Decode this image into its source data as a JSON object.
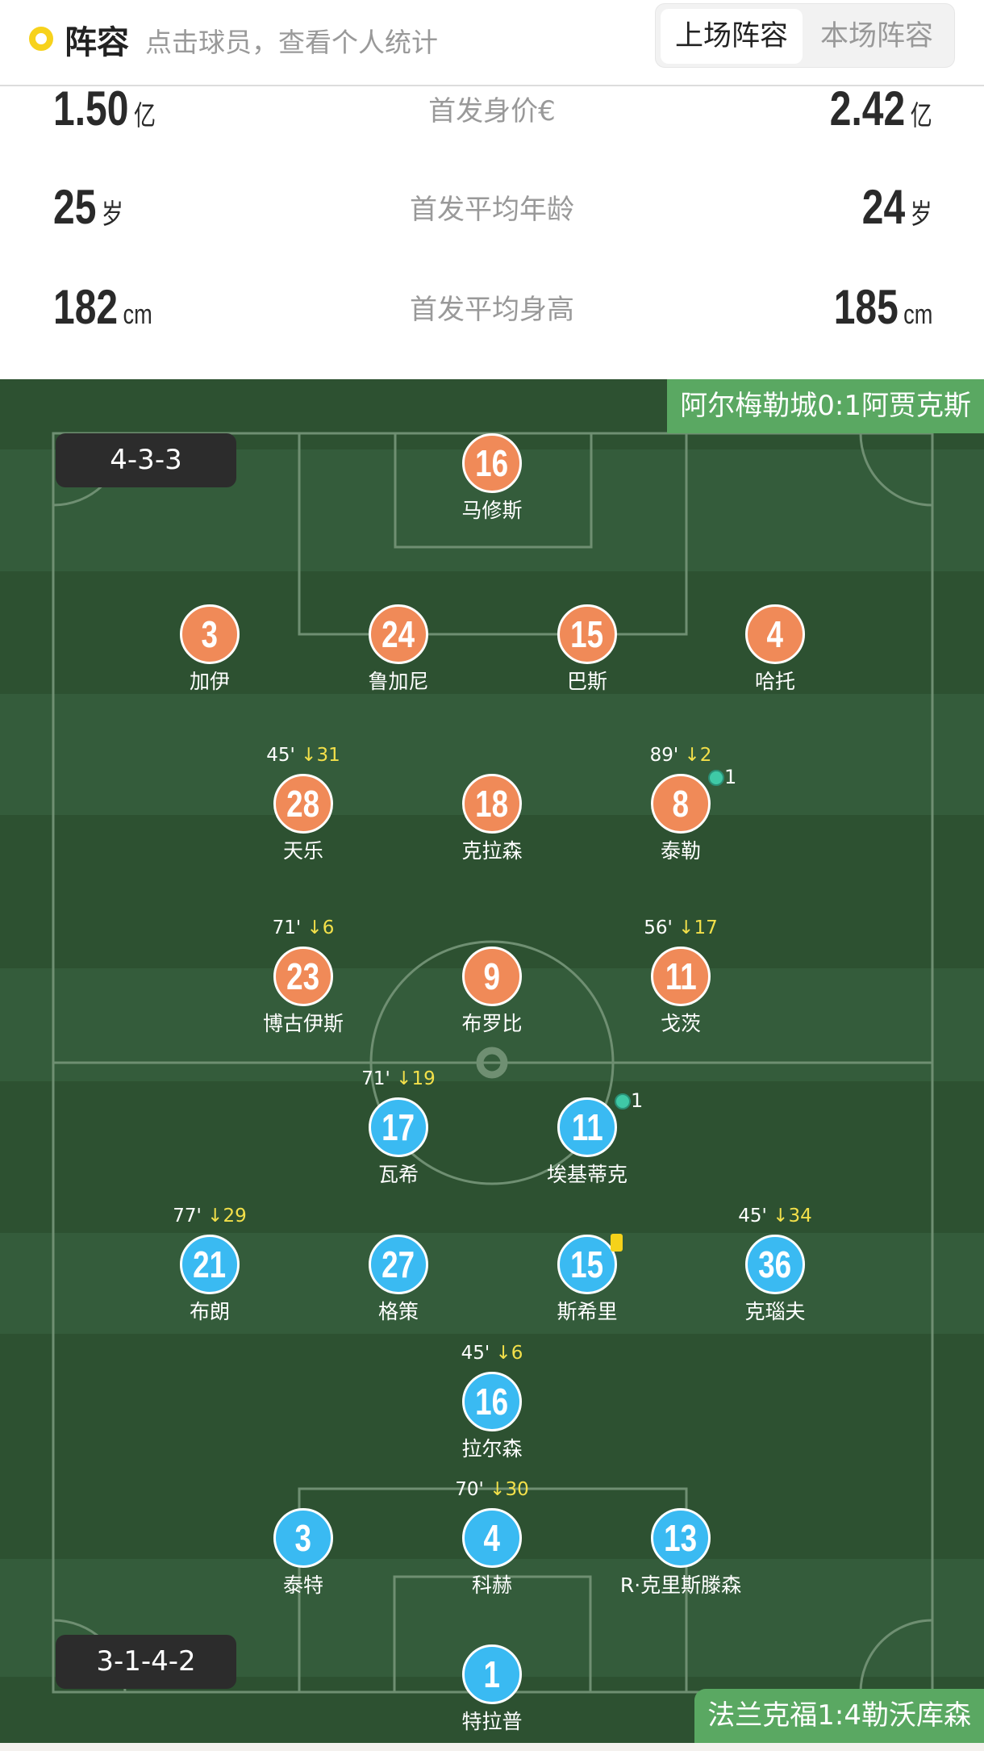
{
  "header": {
    "title": "阵容",
    "subtitle": "点击球员，查看个人统计",
    "tabs": [
      {
        "label": "上场阵容",
        "active": true
      },
      {
        "label": "本场阵容",
        "active": false
      }
    ],
    "accent": "#f7d21c"
  },
  "stats": [
    {
      "label": "首发身价€",
      "left": "1.50",
      "left_unit": "亿",
      "right": "2.42",
      "right_unit": "亿"
    },
    {
      "label": "首发平均年龄",
      "left": "25",
      "left_unit": "岁",
      "right": "24",
      "right_unit": "岁"
    },
    {
      "label": "首发平均身高",
      "left": "182",
      "left_unit": "cm",
      "right": "185",
      "right_unit": "cm"
    }
  ],
  "pitch": {
    "home": {
      "formation": "4-3-3",
      "last_match": "阿尔梅勒城0:1阿贾克斯",
      "color": "#f08a58"
    },
    "away": {
      "formation": "3-1-4-2",
      "last_match": "法兰克福1:4勒沃库森",
      "color": "#3abaf2"
    },
    "players": [
      {
        "team": "home",
        "number": "16",
        "name": "马修斯"
      },
      {
        "team": "home",
        "number": "3",
        "name": "加伊"
      },
      {
        "team": "home",
        "number": "24",
        "name": "鲁加尼"
      },
      {
        "team": "home",
        "number": "15",
        "name": "巴斯"
      },
      {
        "team": "home",
        "number": "4",
        "name": "哈托"
      },
      {
        "team": "home",
        "number": "28",
        "name": "天乐",
        "sub_minute": "45'",
        "sub_in": "31"
      },
      {
        "team": "home",
        "number": "18",
        "name": "克拉森"
      },
      {
        "team": "home",
        "number": "8",
        "name": "泰勒",
        "sub_minute": "89'",
        "sub_in": "2",
        "goals": "1"
      },
      {
        "team": "home",
        "number": "23",
        "name": "博古伊斯",
        "sub_minute": "71'",
        "sub_in": "6"
      },
      {
        "team": "home",
        "number": "9",
        "name": "布罗比"
      },
      {
        "team": "home",
        "number": "11",
        "name": "戈茨",
        "sub_minute": "56'",
        "sub_in": "17"
      },
      {
        "team": "away",
        "number": "17",
        "name": "瓦希",
        "sub_minute": "71'",
        "sub_in": "19"
      },
      {
        "team": "away",
        "number": "11",
        "name": "埃基蒂克",
        "goals": "1"
      },
      {
        "team": "away",
        "number": "21",
        "name": "布朗",
        "sub_minute": "77'",
        "sub_in": "29"
      },
      {
        "team": "away",
        "number": "27",
        "name": "格策"
      },
      {
        "team": "away",
        "number": "15",
        "name": "斯希里",
        "yellow_card": true
      },
      {
        "team": "away",
        "number": "36",
        "name": "克瑙夫",
        "sub_minute": "45'",
        "sub_in": "34"
      },
      {
        "team": "away",
        "number": "16",
        "name": "拉尔森",
        "sub_minute": "45'",
        "sub_in": "6"
      },
      {
        "team": "away",
        "number": "3",
        "name": "泰特"
      },
      {
        "team": "away",
        "number": "4",
        "name": "科赫",
        "sub_minute": "70'",
        "sub_in": "30"
      },
      {
        "team": "away",
        "number": "13",
        "name": "R·克里斯滕森"
      },
      {
        "team": "away",
        "number": "1",
        "name": "特拉普"
      }
    ]
  }
}
